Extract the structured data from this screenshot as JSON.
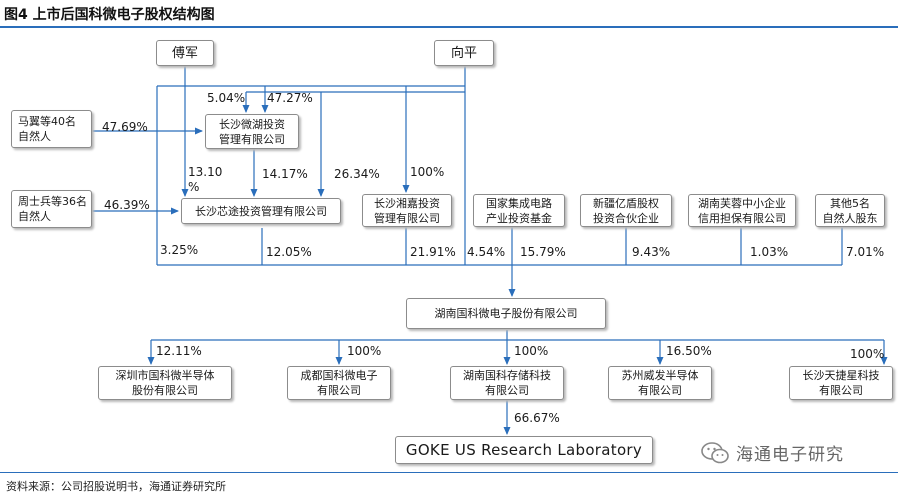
{
  "figure": {
    "title": "图4  上市后国科微电子股权结构图",
    "source": "资料来源：公司招股说明书，海通证券研究所",
    "watermark": "海通电子研究"
  },
  "persons": {
    "fu_jun": "傅军",
    "xiang_ping": "向平"
  },
  "entities": {
    "ma_yi": [
      "马翼等40名",
      "自然人"
    ],
    "zhou_shibing": [
      "周士兵等36名",
      "自然人"
    ],
    "weihu": [
      "长沙微湖投资",
      "管理有限公司"
    ],
    "xintu": "长沙芯途投资管理有限公司",
    "xiangjia": [
      "长沙湘嘉投资",
      "管理有限公司"
    ],
    "national_fund": [
      "国家集成电路",
      "产业投资基金"
    ],
    "xintengyi": [
      "新疆亿盾股权",
      "投资合伙企业"
    ],
    "hunan_furong": [
      "湖南芙蓉中小企业",
      "信用担保有限公司"
    ],
    "others5": [
      "其他5名",
      "自然人股东"
    ],
    "goke": "湖南国科微电子股份有限公司",
    "shenzhen": [
      "深圳市国科微半导体",
      "股份有限公司"
    ],
    "chengdu": [
      "成都国科微电子",
      "有限公司"
    ],
    "hunan_storage": [
      "湖南国科存储科技",
      "有限公司"
    ],
    "suzhou": [
      "苏州威发半导体",
      "有限公司"
    ],
    "changsha_tianjie": [
      "长沙天捷星科技",
      "有限公司"
    ],
    "goke_us": "GOKE US Research Laboratory"
  },
  "percentages": {
    "xiang_to_weihu": "5.04%",
    "fu_to_weihu": "47.27%",
    "mayi_to_weihu": "47.69%",
    "fu_to_xintu_a": "13.10",
    "fu_to_xintu_b": "%",
    "weihu_to_xintu": "14.17%",
    "xiang_to_xintu": "26.34%",
    "xiang_to_xiangjia": "100%",
    "zhou_to_xintu": "46.39%",
    "fu_to_goke": "3.25%",
    "xintu_to_goke": "12.05%",
    "xiangjia_to_goke": "21.91%",
    "xiang_to_goke": "4.54%",
    "fund_to_goke": "15.79%",
    "xintengyi_to_goke": "9.43%",
    "furong_to_goke": "1.03%",
    "others_to_goke": "7.01%",
    "goke_to_shenzhen": "12.11%",
    "goke_to_chengdu": "100%",
    "goke_to_storage": "100%",
    "goke_to_suzhou": "16.50%",
    "goke_to_tianjie": "100%",
    "storage_to_us": "66.67%"
  }
}
